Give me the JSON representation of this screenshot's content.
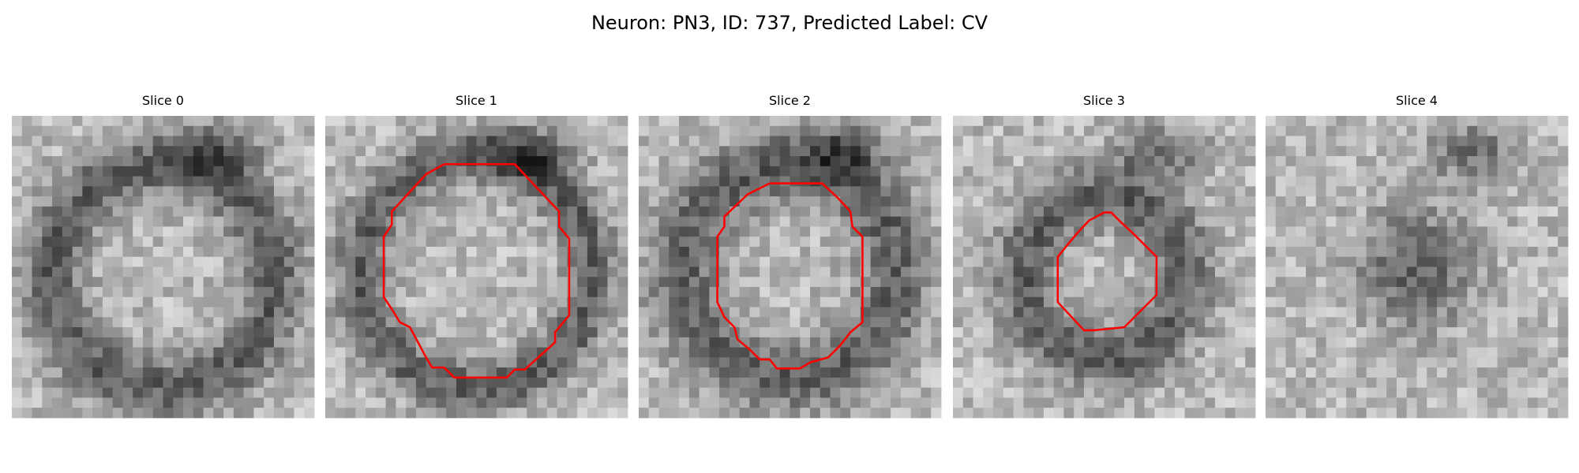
{
  "title": "Neuron: PN3, ID: 737, Predicted Label: CV",
  "panels": [
    {
      "title": "Slice 0"
    },
    {
      "title": "Slice 1"
    },
    {
      "title": "Slice 2"
    },
    {
      "title": "Slice 3"
    },
    {
      "title": "Slice 4"
    }
  ]
}
